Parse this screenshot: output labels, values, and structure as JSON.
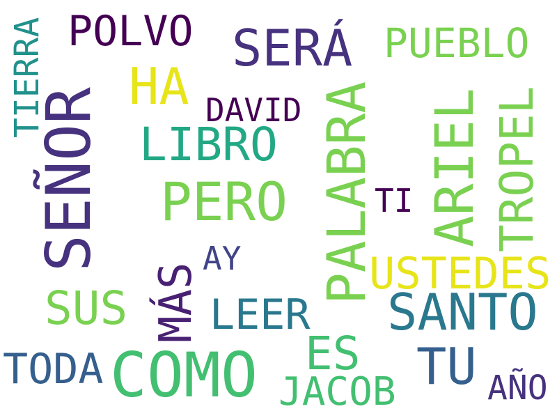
{
  "words": [
    {
      "text": "POLVO",
      "color": "#440154"
    },
    {
      "text": "SERÁ",
      "color": "#46327e"
    },
    {
      "text": "PUEBLO",
      "color": "#7ad151"
    },
    {
      "text": "TIERRA",
      "color": "#21918c"
    },
    {
      "text": "SEÑOR",
      "color": "#46327e"
    },
    {
      "text": "HA",
      "color": "#e7e419"
    },
    {
      "text": "DAVID",
      "color": "#440154"
    },
    {
      "text": "PALABRA",
      "color": "#7ad151"
    },
    {
      "text": "ARIEL",
      "color": "#7ad151"
    },
    {
      "text": "TROPEL",
      "color": "#7ad151"
    },
    {
      "text": "LIBRO",
      "color": "#22a884"
    },
    {
      "text": "PERO",
      "color": "#7ad151"
    },
    {
      "text": "TI",
      "color": "#440154"
    },
    {
      "text": "AY",
      "color": "#414487"
    },
    {
      "text": "MÁS",
      "color": "#482173"
    },
    {
      "text": "USTEDES",
      "color": "#e7e419"
    },
    {
      "text": "SUS",
      "color": "#7ad151"
    },
    {
      "text": "LEER",
      "color": "#2a788e"
    },
    {
      "text": "SANTO",
      "color": "#2a788e"
    },
    {
      "text": "TODA",
      "color": "#355f8d"
    },
    {
      "text": "COMO",
      "color": "#43bf71"
    },
    {
      "text": "ES",
      "color": "#43bf71"
    },
    {
      "text": "TU",
      "color": "#355f8d"
    },
    {
      "text": "JACOB",
      "color": "#43bf71"
    },
    {
      "text": "AÑO",
      "color": "#46327e"
    }
  ]
}
